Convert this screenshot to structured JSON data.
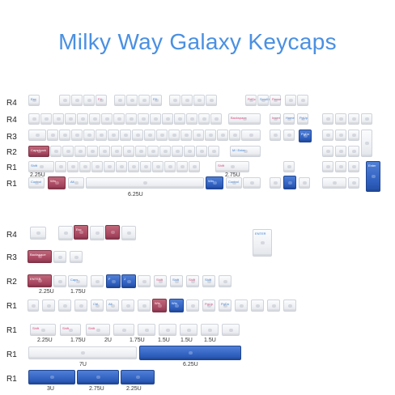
{
  "title": "Milky Way Galaxy Keycaps",
  "colors": {
    "title": "#4a90e2",
    "clear": "#eef0f4",
    "red": "#a84660",
    "blue": "#2f5fbf"
  },
  "rows": [
    "R4",
    "R4",
    "R3",
    "R2",
    "R1",
    "R1",
    "R4",
    "R3",
    "R2",
    "R1",
    "R1",
    "R1",
    "R1"
  ],
  "legends": {
    "esc": "Esc",
    "f4": "F4",
    "f8": "F8",
    "ptsc": "PrtSc",
    "scroll": "Scroll Lock",
    "pause": "Pause",
    "backspace": "Backspace",
    "insert": "Insert",
    "home": "Home",
    "pgup": "PgUp",
    "pgdn": "PgDn",
    "caps": "Caps Lock",
    "enter_r2": "M↑ Enter",
    "shift_l": "Shift",
    "shift_r": "Shift",
    "control_l": "Control",
    "win_l": "Win",
    "alt_l": "Alt",
    "win_r": "Win",
    "control_r": "Control",
    "enter_np": "Enter",
    "esc_b": "Esc",
    "enter_iso": "ENTER",
    "backspace_b": "Backspace",
    "enter_b": "ENTER",
    "caps_b": "Caps",
    "f_b": "F",
    "j_b": "J",
    "shift_b1": "Shift",
    "shift_b2": "Shift",
    "shift_b3": "Shift",
    "shift_b4": "Shift",
    "ctrl_b": "Ctrl",
    "alt_b": "Alt",
    "win_b1": "Win",
    "win_b2": "Win",
    "pgup_b": "PgUp",
    "pgdn_b": "PgDn",
    "shift_c1": "Shift",
    "shift_c2": "Shift",
    "shift_c3": "Shift"
  },
  "sizes": {
    "top_225": "2.25U",
    "top_275": "2.75U",
    "top_625": "6.25U",
    "r2_225": "2.25U",
    "r2_175": "1.75U",
    "b1_225": "2.25U",
    "b1_175a": "1.75U",
    "b1_2": "2U",
    "b1_175b": "1.75U",
    "b1_15a": "1.5U",
    "b1_15b": "1.5U",
    "b1_15c": "1.5U",
    "b2_7": "7U",
    "b2_625": "6.25U",
    "b3_3": "3U",
    "b3_275": "2.75U",
    "b3_225": "2.25U"
  }
}
